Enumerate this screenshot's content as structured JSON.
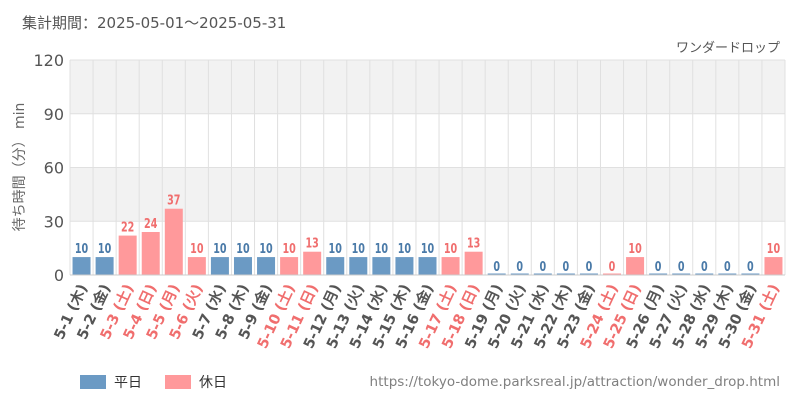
{
  "period_label": "集計期間：2025-05-01〜2025-05-31",
  "source_url": "https://tokyo-dome.parksreal.jp/attraction/wonder_drop.html",
  "colors": {
    "weekday": "#6b9ac4",
    "holiday": "#ff999b",
    "holiday_label": "#f06e6e",
    "weekday_label": "#4a7aa8",
    "axis_text": "#555555",
    "band": "#f2f2f2",
    "grid": "#e0e0e0"
  },
  "legend": {
    "weekday": "平日",
    "holiday": "休日"
  },
  "chart_data": {
    "type": "bar",
    "title": "ワンダードロップ",
    "ylabel": "待ち時間（分） min",
    "xlabel": "",
    "ylim": [
      0,
      120
    ],
    "yticks": [
      0,
      30,
      60,
      90,
      120
    ],
    "grid": true,
    "legend_position": "bottom-left",
    "categories": [
      "5-1 (木)",
      "5-2 (金)",
      "5-3 (土)",
      "5-4 (日)",
      "5-5 (月)",
      "5-6 (火)",
      "5-7 (水)",
      "5-8 (木)",
      "5-9 (金)",
      "5-10 (土)",
      "5-11 (日)",
      "5-12 (月)",
      "5-13 (火)",
      "5-14 (水)",
      "5-15 (木)",
      "5-16 (金)",
      "5-17 (土)",
      "5-18 (日)",
      "5-19 (月)",
      "5-20 (火)",
      "5-21 (水)",
      "5-22 (木)",
      "5-23 (金)",
      "5-24 (土)",
      "5-25 (日)",
      "5-26 (月)",
      "5-27 (火)",
      "5-28 (水)",
      "5-29 (木)",
      "5-30 (金)",
      "5-31 (土)"
    ],
    "values": [
      10,
      10,
      22,
      24,
      37,
      10,
      10,
      10,
      10,
      10,
      13,
      10,
      10,
      10,
      10,
      10,
      10,
      13,
      0,
      0,
      0,
      0,
      0,
      0,
      10,
      0,
      0,
      0,
      0,
      0,
      10
    ],
    "day_type": [
      "weekday",
      "weekday",
      "holiday",
      "holiday",
      "holiday",
      "holiday",
      "weekday",
      "weekday",
      "weekday",
      "holiday",
      "holiday",
      "weekday",
      "weekday",
      "weekday",
      "weekday",
      "weekday",
      "holiday",
      "holiday",
      "weekday",
      "weekday",
      "weekday",
      "weekday",
      "weekday",
      "holiday",
      "holiday",
      "weekday",
      "weekday",
      "weekday",
      "weekday",
      "weekday",
      "holiday"
    ]
  }
}
